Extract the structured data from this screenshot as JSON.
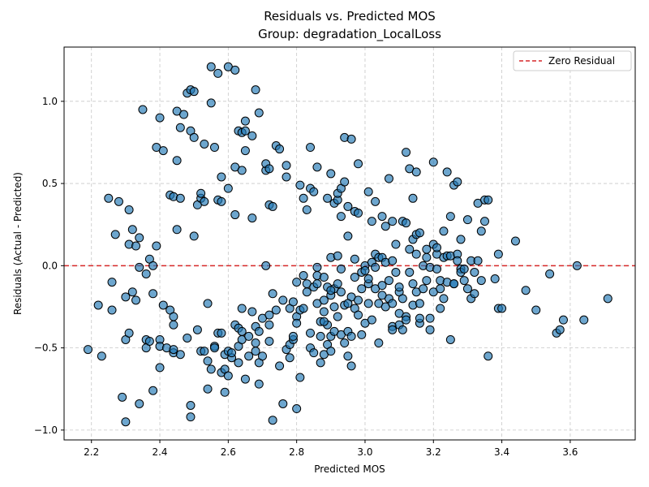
{
  "chart_data": {
    "type": "scatter",
    "title": "Residuals vs. Predicted MOS",
    "subtitle": "Group: degradation_LocalLoss",
    "xlabel": "Predicted MOS",
    "ylabel": "Residuals (Actual - Predicted)",
    "xlim": [
      2.12,
      3.79
    ],
    "ylim": [
      -1.06,
      1.33
    ],
    "xticks": [
      2.2,
      2.4,
      2.6,
      2.8,
      3.0,
      3.2,
      3.4,
      3.6
    ],
    "xtick_labels": [
      "2.2",
      "2.4",
      "2.6",
      "2.8",
      "3.0",
      "3.2",
      "3.4",
      "3.6"
    ],
    "yticks": [
      -1.0,
      -0.5,
      0.0,
      0.5,
      1.0
    ],
    "ytick_labels": [
      "−1.0",
      "−0.5",
      "0.0",
      "0.5",
      "1.0"
    ],
    "grid": true,
    "legend": {
      "position": "top-right",
      "label": "Zero Residual"
    },
    "reference_line": {
      "y": 0,
      "color": "#d62728",
      "style": "dashed"
    },
    "marker_color": "#1f77b4",
    "points": [
      [
        2.19,
        -0.51
      ],
      [
        2.22,
        -0.24
      ],
      [
        2.23,
        -0.55
      ],
      [
        2.26,
        -0.1
      ],
      [
        2.26,
        -0.27
      ],
      [
        2.25,
        0.41
      ],
      [
        2.28,
        0.39
      ],
      [
        2.27,
        0.19
      ],
      [
        2.29,
        -0.8
      ],
      [
        2.3,
        -0.95
      ],
      [
        2.3,
        -0.45
      ],
      [
        2.3,
        -0.19
      ],
      [
        2.31,
        0.13
      ],
      [
        2.31,
        0.34
      ],
      [
        2.31,
        -0.41
      ],
      [
        2.32,
        -0.16
      ],
      [
        2.32,
        0.22
      ],
      [
        2.33,
        -0.21
      ],
      [
        2.33,
        0.12
      ],
      [
        2.34,
        0.17
      ],
      [
        2.34,
        -0.84
      ],
      [
        2.34,
        -0.01
      ],
      [
        2.35,
        0.95
      ],
      [
        2.36,
        -0.05
      ],
      [
        2.36,
        -0.45
      ],
      [
        2.36,
        -0.5
      ],
      [
        2.37,
        -0.46
      ],
      [
        2.37,
        0.04
      ],
      [
        2.38,
        -0.76
      ],
      [
        2.38,
        -0.17
      ],
      [
        2.38,
        0.0
      ],
      [
        2.39,
        0.12
      ],
      [
        2.39,
        0.72
      ],
      [
        2.4,
        0.9
      ],
      [
        2.4,
        -0.45
      ],
      [
        2.4,
        -0.49
      ],
      [
        2.4,
        -0.62
      ],
      [
        2.41,
        0.7
      ],
      [
        2.41,
        -0.24
      ],
      [
        2.42,
        -0.5
      ],
      [
        2.43,
        -0.27
      ],
      [
        2.43,
        0.43
      ],
      [
        2.44,
        -0.53
      ],
      [
        2.44,
        -0.51
      ],
      [
        2.44,
        0.42
      ],
      [
        2.44,
        -0.36
      ],
      [
        2.44,
        -0.31
      ],
      [
        2.45,
        0.22
      ],
      [
        2.45,
        0.64
      ],
      [
        2.45,
        0.94
      ],
      [
        2.46,
        0.84
      ],
      [
        2.46,
        0.41
      ],
      [
        2.46,
        -0.54
      ],
      [
        2.47,
        0.92
      ],
      [
        2.48,
        -0.44
      ],
      [
        2.48,
        1.05
      ],
      [
        2.49,
        -0.85
      ],
      [
        2.49,
        0.82
      ],
      [
        2.49,
        -0.92
      ],
      [
        2.49,
        1.07
      ],
      [
        2.5,
        1.06
      ],
      [
        2.5,
        0.18
      ],
      [
        2.5,
        0.78
      ],
      [
        2.51,
        0.37
      ],
      [
        2.51,
        -0.39
      ],
      [
        2.52,
        -0.52
      ],
      [
        2.52,
        0.41
      ],
      [
        2.52,
        0.44
      ],
      [
        2.53,
        0.39
      ],
      [
        2.53,
        0.74
      ],
      [
        2.53,
        -0.52
      ],
      [
        2.54,
        -0.58
      ],
      [
        2.54,
        -0.23
      ],
      [
        2.54,
        -0.75
      ],
      [
        2.55,
        1.21
      ],
      [
        2.55,
        -0.63
      ],
      [
        2.55,
        0.99
      ],
      [
        2.56,
        0.72
      ],
      [
        2.56,
        -0.49
      ],
      [
        2.56,
        -0.5
      ],
      [
        2.57,
        1.17
      ],
      [
        2.57,
        -0.41
      ],
      [
        2.57,
        0.4
      ],
      [
        2.58,
        0.39
      ],
      [
        2.58,
        0.54
      ],
      [
        2.58,
        -0.41
      ],
      [
        2.58,
        -0.65
      ],
      [
        2.59,
        -0.77
      ],
      [
        2.59,
        -0.54
      ],
      [
        2.59,
        -0.63
      ],
      [
        2.6,
        -0.52
      ],
      [
        2.6,
        1.21
      ],
      [
        2.6,
        0.47
      ],
      [
        2.6,
        -0.67
      ],
      [
        2.61,
        -0.56
      ],
      [
        2.61,
        -0.53
      ],
      [
        2.62,
        -0.36
      ],
      [
        2.62,
        1.19
      ],
      [
        2.62,
        0.31
      ],
      [
        2.62,
        0.6
      ],
      [
        2.63,
        0.82
      ],
      [
        2.63,
        -0.38
      ],
      [
        2.63,
        -0.49
      ],
      [
        2.63,
        -0.59
      ],
      [
        2.64,
        -0.45
      ],
      [
        2.64,
        0.81
      ],
      [
        2.64,
        0.58
      ],
      [
        2.64,
        -0.26
      ],
      [
        2.64,
        -0.4
      ],
      [
        2.65,
        0.7
      ],
      [
        2.65,
        0.82
      ],
      [
        2.65,
        0.88
      ],
      [
        2.65,
        -0.69
      ],
      [
        2.66,
        -0.43
      ],
      [
        2.66,
        -0.55
      ],
      [
        2.67,
        0.79
      ],
      [
        2.67,
        -0.28
      ],
      [
        2.67,
        0.29
      ],
      [
        2.68,
        -0.37
      ],
      [
        2.68,
        -0.52
      ],
      [
        2.68,
        -0.47
      ],
      [
        2.68,
        1.07
      ],
      [
        2.69,
        0.93
      ],
      [
        2.69,
        -0.4
      ],
      [
        2.69,
        -0.72
      ],
      [
        2.69,
        -0.59
      ],
      [
        2.7,
        -0.55
      ],
      [
        2.7,
        -0.32
      ],
      [
        2.71,
        0.58
      ],
      [
        2.71,
        0.62
      ],
      [
        2.71,
        0.0
      ],
      [
        2.72,
        -0.46
      ],
      [
        2.72,
        -0.36
      ],
      [
        2.72,
        0.59
      ],
      [
        2.72,
        0.37
      ],
      [
        2.72,
        -0.3
      ],
      [
        2.73,
        -0.94
      ],
      [
        2.73,
        0.36
      ],
      [
        2.73,
        -0.17
      ],
      [
        2.74,
        -0.27
      ],
      [
        2.74,
        0.73
      ],
      [
        2.75,
        0.71
      ],
      [
        2.75,
        -0.61
      ],
      [
        2.76,
        -0.21
      ],
      [
        2.76,
        -0.84
      ],
      [
        2.77,
        -0.51
      ],
      [
        2.77,
        0.54
      ],
      [
        2.77,
        0.61
      ],
      [
        2.78,
        -0.48
      ],
      [
        2.78,
        -0.56
      ],
      [
        2.78,
        -0.26
      ],
      [
        2.79,
        -0.22
      ],
      [
        2.79,
        -0.45
      ],
      [
        2.79,
        -0.43
      ],
      [
        2.8,
        -0.87
      ],
      [
        2.8,
        -0.31
      ],
      [
        2.8,
        -0.35
      ],
      [
        2.81,
        -0.27
      ],
      [
        2.81,
        -0.68
      ],
      [
        2.81,
        0.49
      ],
      [
        2.82,
        0.41
      ],
      [
        2.82,
        -0.26
      ],
      [
        2.82,
        -0.06
      ],
      [
        2.83,
        -0.11
      ],
      [
        2.83,
        -0.16
      ],
      [
        2.83,
        0.34
      ],
      [
        2.84,
        0.47
      ],
      [
        2.84,
        0.72
      ],
      [
        2.84,
        -0.5
      ],
      [
        2.84,
        -0.41
      ],
      [
        2.85,
        0.45
      ],
      [
        2.85,
        -0.13
      ],
      [
        2.85,
        -0.53
      ],
      [
        2.86,
        -0.06
      ],
      [
        2.86,
        -0.23
      ],
      [
        2.86,
        -0.01
      ],
      [
        2.86,
        -0.11
      ],
      [
        2.86,
        0.6
      ],
      [
        2.87,
        -0.34
      ],
      [
        2.87,
        -0.59
      ],
      [
        2.87,
        -0.43
      ],
      [
        2.88,
        -0.28
      ],
      [
        2.88,
        -0.21
      ],
      [
        2.88,
        -0.54
      ],
      [
        2.88,
        -0.07
      ],
      [
        2.89,
        -0.13
      ],
      [
        2.89,
        -0.36
      ],
      [
        2.89,
        0.41
      ],
      [
        2.89,
        -0.48
      ],
      [
        2.9,
        0.56
      ],
      [
        2.9,
        -0.52
      ],
      [
        2.9,
        -0.43
      ],
      [
        2.9,
        0.05
      ],
      [
        2.9,
        -0.18
      ],
      [
        2.91,
        -0.14
      ],
      [
        2.91,
        -0.4
      ],
      [
        2.91,
        -0.25
      ],
      [
        2.91,
        0.38
      ],
      [
        2.92,
        0.4
      ],
      [
        2.92,
        0.06
      ],
      [
        2.92,
        -0.31
      ],
      [
        2.92,
        -0.11
      ],
      [
        2.92,
        0.44
      ],
      [
        2.93,
        0.3
      ],
      [
        2.93,
        -0.16
      ],
      [
        2.93,
        0.47
      ],
      [
        2.93,
        -0.02
      ],
      [
        2.93,
        -0.42
      ],
      [
        2.94,
        0.78
      ],
      [
        2.94,
        -0.47
      ],
      [
        2.94,
        0.51
      ],
      [
        2.94,
        -0.24
      ],
      [
        2.95,
        -0.4
      ],
      [
        2.95,
        0.36
      ],
      [
        2.95,
        0.18
      ],
      [
        2.95,
        -0.55
      ],
      [
        2.96,
        -0.19
      ],
      [
        2.96,
        0.77
      ],
      [
        2.96,
        -0.43
      ],
      [
        2.96,
        -0.61
      ],
      [
        2.97,
        -0.07
      ],
      [
        2.97,
        0.04
      ],
      [
        2.97,
        -0.26
      ],
      [
        2.97,
        0.33
      ],
      [
        2.98,
        0.62
      ],
      [
        2.98,
        -0.3
      ],
      [
        2.98,
        0.32
      ],
      [
        2.98,
        -0.21
      ],
      [
        2.99,
        -0.42
      ],
      [
        2.99,
        -0.14
      ],
      [
        2.99,
        -0.04
      ],
      [
        3.0,
        0.0
      ],
      [
        3.0,
        -0.35
      ],
      [
        3.0,
        -0.03
      ],
      [
        3.01,
        -0.23
      ],
      [
        3.01,
        -0.11
      ],
      [
        3.01,
        -0.08
      ],
      [
        3.01,
        0.45
      ],
      [
        3.02,
        0.27
      ],
      [
        3.02,
        0.02
      ],
      [
        3.02,
        -0.33
      ],
      [
        3.03,
        0.39
      ],
      [
        3.03,
        -0.14
      ],
      [
        3.03,
        0.07
      ],
      [
        3.03,
        -0.01
      ],
      [
        3.04,
        -0.23
      ],
      [
        3.04,
        -0.47
      ],
      [
        3.04,
        0.05
      ],
      [
        3.05,
        0.05
      ],
      [
        3.05,
        0.3
      ],
      [
        3.05,
        -0.12
      ],
      [
        3.06,
        -0.25
      ],
      [
        3.06,
        0.24
      ],
      [
        3.06,
        0.02
      ],
      [
        3.07,
        -0.2
      ],
      [
        3.07,
        -0.09
      ],
      [
        3.07,
        0.53
      ],
      [
        3.08,
        0.03
      ],
      [
        3.08,
        0.27
      ],
      [
        3.08,
        -0.23
      ],
      [
        3.08,
        -0.37
      ],
      [
        3.09,
        -0.04
      ],
      [
        3.09,
        0.13
      ],
      [
        3.1,
        -0.29
      ],
      [
        3.1,
        -0.36
      ],
      [
        3.1,
        -0.16
      ],
      [
        3.1,
        -0.13
      ],
      [
        3.11,
        0.27
      ],
      [
        3.11,
        -0.39
      ],
      [
        3.11,
        -0.2
      ],
      [
        3.12,
        0.26
      ],
      [
        3.12,
        0.69
      ],
      [
        3.12,
        -0.31
      ],
      [
        3.12,
        -0.33
      ],
      [
        3.13,
        0.1
      ],
      [
        3.13,
        -0.04
      ],
      [
        3.13,
        0.59
      ],
      [
        3.14,
        -0.24
      ],
      [
        3.14,
        0.41
      ],
      [
        3.14,
        0.16
      ],
      [
        3.14,
        -0.11
      ],
      [
        3.15,
        -0.16
      ],
      [
        3.15,
        0.57
      ],
      [
        3.15,
        0.19
      ],
      [
        3.15,
        0.07
      ],
      [
        3.16,
        -0.35
      ],
      [
        3.16,
        0.2
      ],
      [
        3.16,
        -0.23
      ],
      [
        3.16,
        -0.32
      ],
      [
        3.17,
        -0.14
      ],
      [
        3.17,
        0.0
      ],
      [
        3.18,
        0.05
      ],
      [
        3.18,
        -0.09
      ],
      [
        3.18,
        0.1
      ],
      [
        3.19,
        -0.39
      ],
      [
        3.19,
        -0.32
      ],
      [
        3.19,
        -0.01
      ],
      [
        3.2,
        0.13
      ],
      [
        3.2,
        -0.16
      ],
      [
        3.2,
        0.63
      ],
      [
        3.21,
        0.07
      ],
      [
        3.21,
        0.11
      ],
      [
        3.21,
        -0.02
      ],
      [
        3.22,
        -0.26
      ],
      [
        3.22,
        -0.14
      ],
      [
        3.22,
        -0.09
      ],
      [
        3.23,
        0.05
      ],
      [
        3.23,
        0.21
      ],
      [
        3.23,
        -0.2
      ],
      [
        3.24,
        0.57
      ],
      [
        3.24,
        0.06
      ],
      [
        3.24,
        -0.1
      ],
      [
        3.25,
        0.06
      ],
      [
        3.25,
        0.3
      ],
      [
        3.25,
        -0.45
      ],
      [
        3.26,
        -0.11
      ],
      [
        3.26,
        0.49
      ],
      [
        3.26,
        -0.11
      ],
      [
        3.27,
        0.07
      ],
      [
        3.27,
        0.51
      ],
      [
        3.27,
        0.03
      ],
      [
        3.28,
        -0.02
      ],
      [
        3.28,
        0.16
      ],
      [
        3.28,
        -0.04
      ],
      [
        3.29,
        -0.09
      ],
      [
        3.29,
        -0.02
      ],
      [
        3.3,
        0.28
      ],
      [
        3.3,
        -0.14
      ],
      [
        3.31,
        -0.2
      ],
      [
        3.31,
        0.03
      ],
      [
        3.32,
        -0.04
      ],
      [
        3.32,
        -0.17
      ],
      [
        3.33,
        0.38
      ],
      [
        3.33,
        0.03
      ],
      [
        3.34,
        0.21
      ],
      [
        3.34,
        -0.09
      ],
      [
        3.35,
        0.27
      ],
      [
        3.35,
        0.4
      ],
      [
        3.36,
        0.4
      ],
      [
        3.36,
        -0.55
      ],
      [
        3.38,
        -0.08
      ],
      [
        3.39,
        -0.26
      ],
      [
        3.39,
        0.07
      ],
      [
        3.4,
        -0.26
      ],
      [
        3.44,
        0.15
      ],
      [
        3.47,
        -0.15
      ],
      [
        3.5,
        -0.27
      ],
      [
        3.54,
        -0.05
      ],
      [
        3.56,
        -0.41
      ],
      [
        3.57,
        -0.39
      ],
      [
        3.58,
        -0.33
      ],
      [
        3.62,
        0.0
      ],
      [
        3.64,
        -0.33
      ],
      [
        3.71,
        -0.2
      ],
      [
        3.08,
        -0.39
      ],
      [
        2.9,
        -0.15
      ],
      [
        2.95,
        -0.23
      ],
      [
        2.8,
        -0.1
      ],
      [
        3.05,
        -0.18
      ],
      [
        2.88,
        -0.34
      ]
    ]
  }
}
